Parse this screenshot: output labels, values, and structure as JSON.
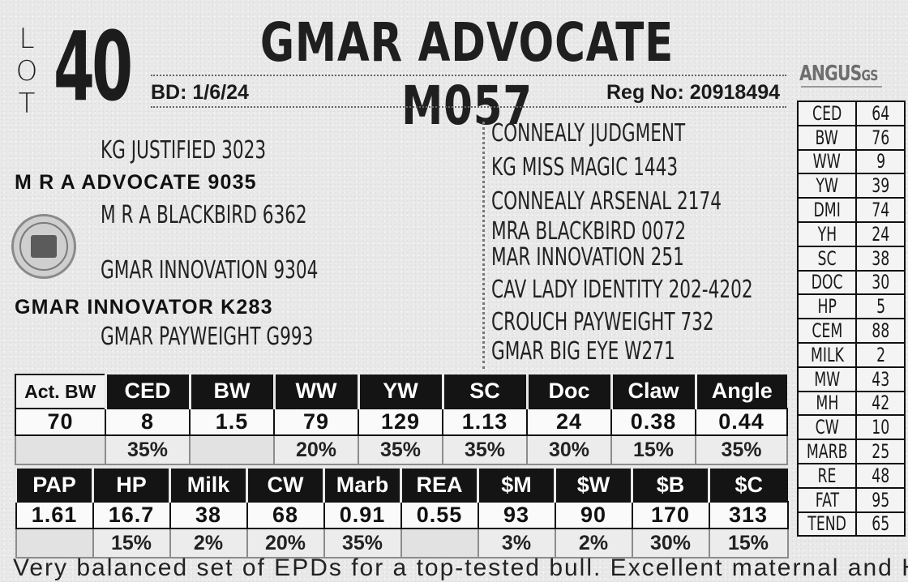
{
  "lot": {
    "letters": [
      "L",
      "O",
      "T"
    ],
    "number": "40"
  },
  "animal": {
    "name": "GMAR ADVOCATE M057",
    "bd_label": "BD:",
    "bd_value": "1/6/24",
    "reg_label": "Reg No:",
    "reg_value": "20918494"
  },
  "pedigree": {
    "sire_sire": "KG JUSTIFIED 3023",
    "sire": "M R A ADVOCATE 9035",
    "sire_dam": "M R A BLACKBIRD 6362",
    "dam_sire": "GMAR INNOVATION 9304",
    "dam": "GMAR INNOVATOR K283",
    "dam_dam": "GMAR PAYWEIGHT G993",
    "right": [
      "CONNEALY JUDGMENT",
      "KG MISS MAGIC 1443",
      "CONNEALY ARSENAL 2174",
      "MRA BLACKBIRD 0072",
      "MAR INNOVATION 251",
      "CAV LADY IDENTITY 202-4202",
      "CROUCH PAYWEIGHT 732",
      "GMAR BIG EYE W271"
    ]
  },
  "logos": {
    "angus": "ANGUS",
    "angus_suffix": "GS",
    "seal_icon": "association-seal-icon"
  },
  "side_epd": [
    {
      "label": "CED",
      "value": "64"
    },
    {
      "label": "BW",
      "value": "76"
    },
    {
      "label": "WW",
      "value": "9"
    },
    {
      "label": "YW",
      "value": "39"
    },
    {
      "label": "DMI",
      "value": "74"
    },
    {
      "label": "YH",
      "value": "24"
    },
    {
      "label": "SC",
      "value": "38"
    },
    {
      "label": "DOC",
      "value": "30"
    },
    {
      "label": "HP",
      "value": "5"
    },
    {
      "label": "CEM",
      "value": "88"
    },
    {
      "label": "MILK",
      "value": "2"
    },
    {
      "label": "MW",
      "value": "43"
    },
    {
      "label": "MH",
      "value": "42"
    },
    {
      "label": "CW",
      "value": "10"
    },
    {
      "label": "MARB",
      "value": "25"
    },
    {
      "label": "RE",
      "value": "48"
    },
    {
      "label": "FAT",
      "value": "95"
    },
    {
      "label": "TEND",
      "value": "65"
    }
  ],
  "epd_table_1": {
    "headers": [
      "Act. BW",
      "CED",
      "BW",
      "WW",
      "YW",
      "SC",
      "Doc",
      "Claw",
      "Angle"
    ],
    "values": [
      "70",
      "8",
      "1.5",
      "79",
      "129",
      "1.13",
      "24",
      "0.38",
      "0.44"
    ],
    "percentiles": [
      "",
      "35%",
      "",
      "20%",
      "35%",
      "35%",
      "30%",
      "15%",
      "35%"
    ]
  },
  "epd_table_2": {
    "headers": [
      "PAP",
      "HP",
      "Milk",
      "CW",
      "Marb",
      "REA",
      "$M",
      "$W",
      "$B",
      "$C"
    ],
    "values": [
      "1.61",
      "16.7",
      "38",
      "68",
      "0.91",
      "0.55",
      "93",
      "90",
      "170",
      "313"
    ],
    "percentiles": [
      "",
      "15%",
      "2%",
      "20%",
      "35%",
      "",
      "3%",
      "2%",
      "30%",
      "15%"
    ]
  },
  "comment": "Very balanced set of EPDs for a top-tested bull. Excellent maternal and HP"
}
